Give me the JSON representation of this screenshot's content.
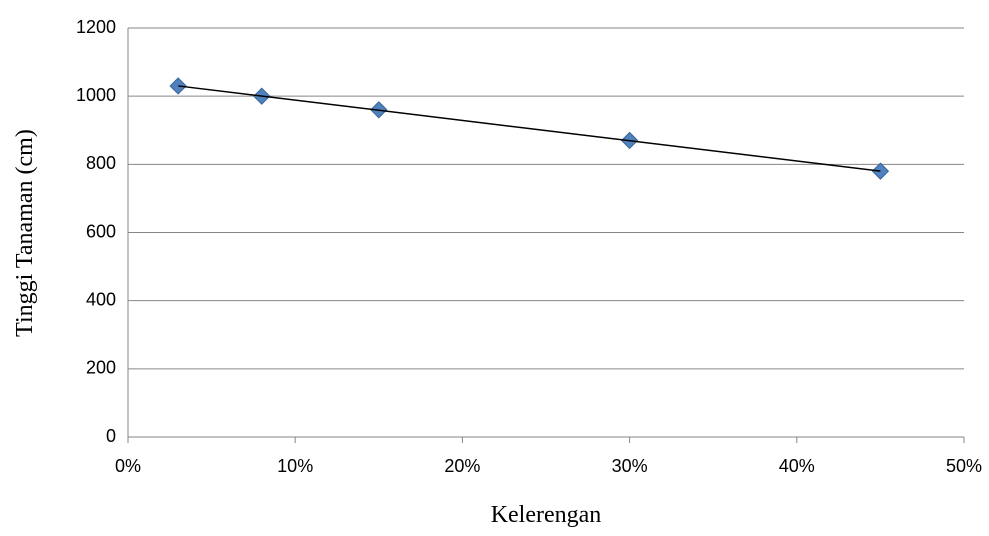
{
  "chart_data": {
    "type": "scatter",
    "x_label": "Kelerengan",
    "y_label": "Tinggi Tanaman (cm)",
    "x": [
      3,
      8,
      15,
      30,
      45
    ],
    "series": [
      {
        "color": "#4f81bd",
        "values": [
          1030,
          1000,
          960,
          870,
          780
        ]
      }
    ],
    "trendline": {
      "x": [
        3,
        45
      ],
      "values": [
        1030,
        780
      ],
      "color": "#000000"
    },
    "xlim": [
      0,
      50
    ],
    "xticks": [
      {
        "value": 0,
        "label": "0%"
      },
      {
        "value": 10,
        "label": "10%"
      },
      {
        "value": 20,
        "label": "20%"
      },
      {
        "value": 30,
        "label": "30%"
      },
      {
        "value": 40,
        "label": "40%"
      },
      {
        "value": 50,
        "label": "50%"
      }
    ],
    "ylim": [
      0,
      1200
    ],
    "yticks": [
      0,
      200,
      400,
      600,
      800,
      1000,
      1200
    ],
    "grid": true
  }
}
